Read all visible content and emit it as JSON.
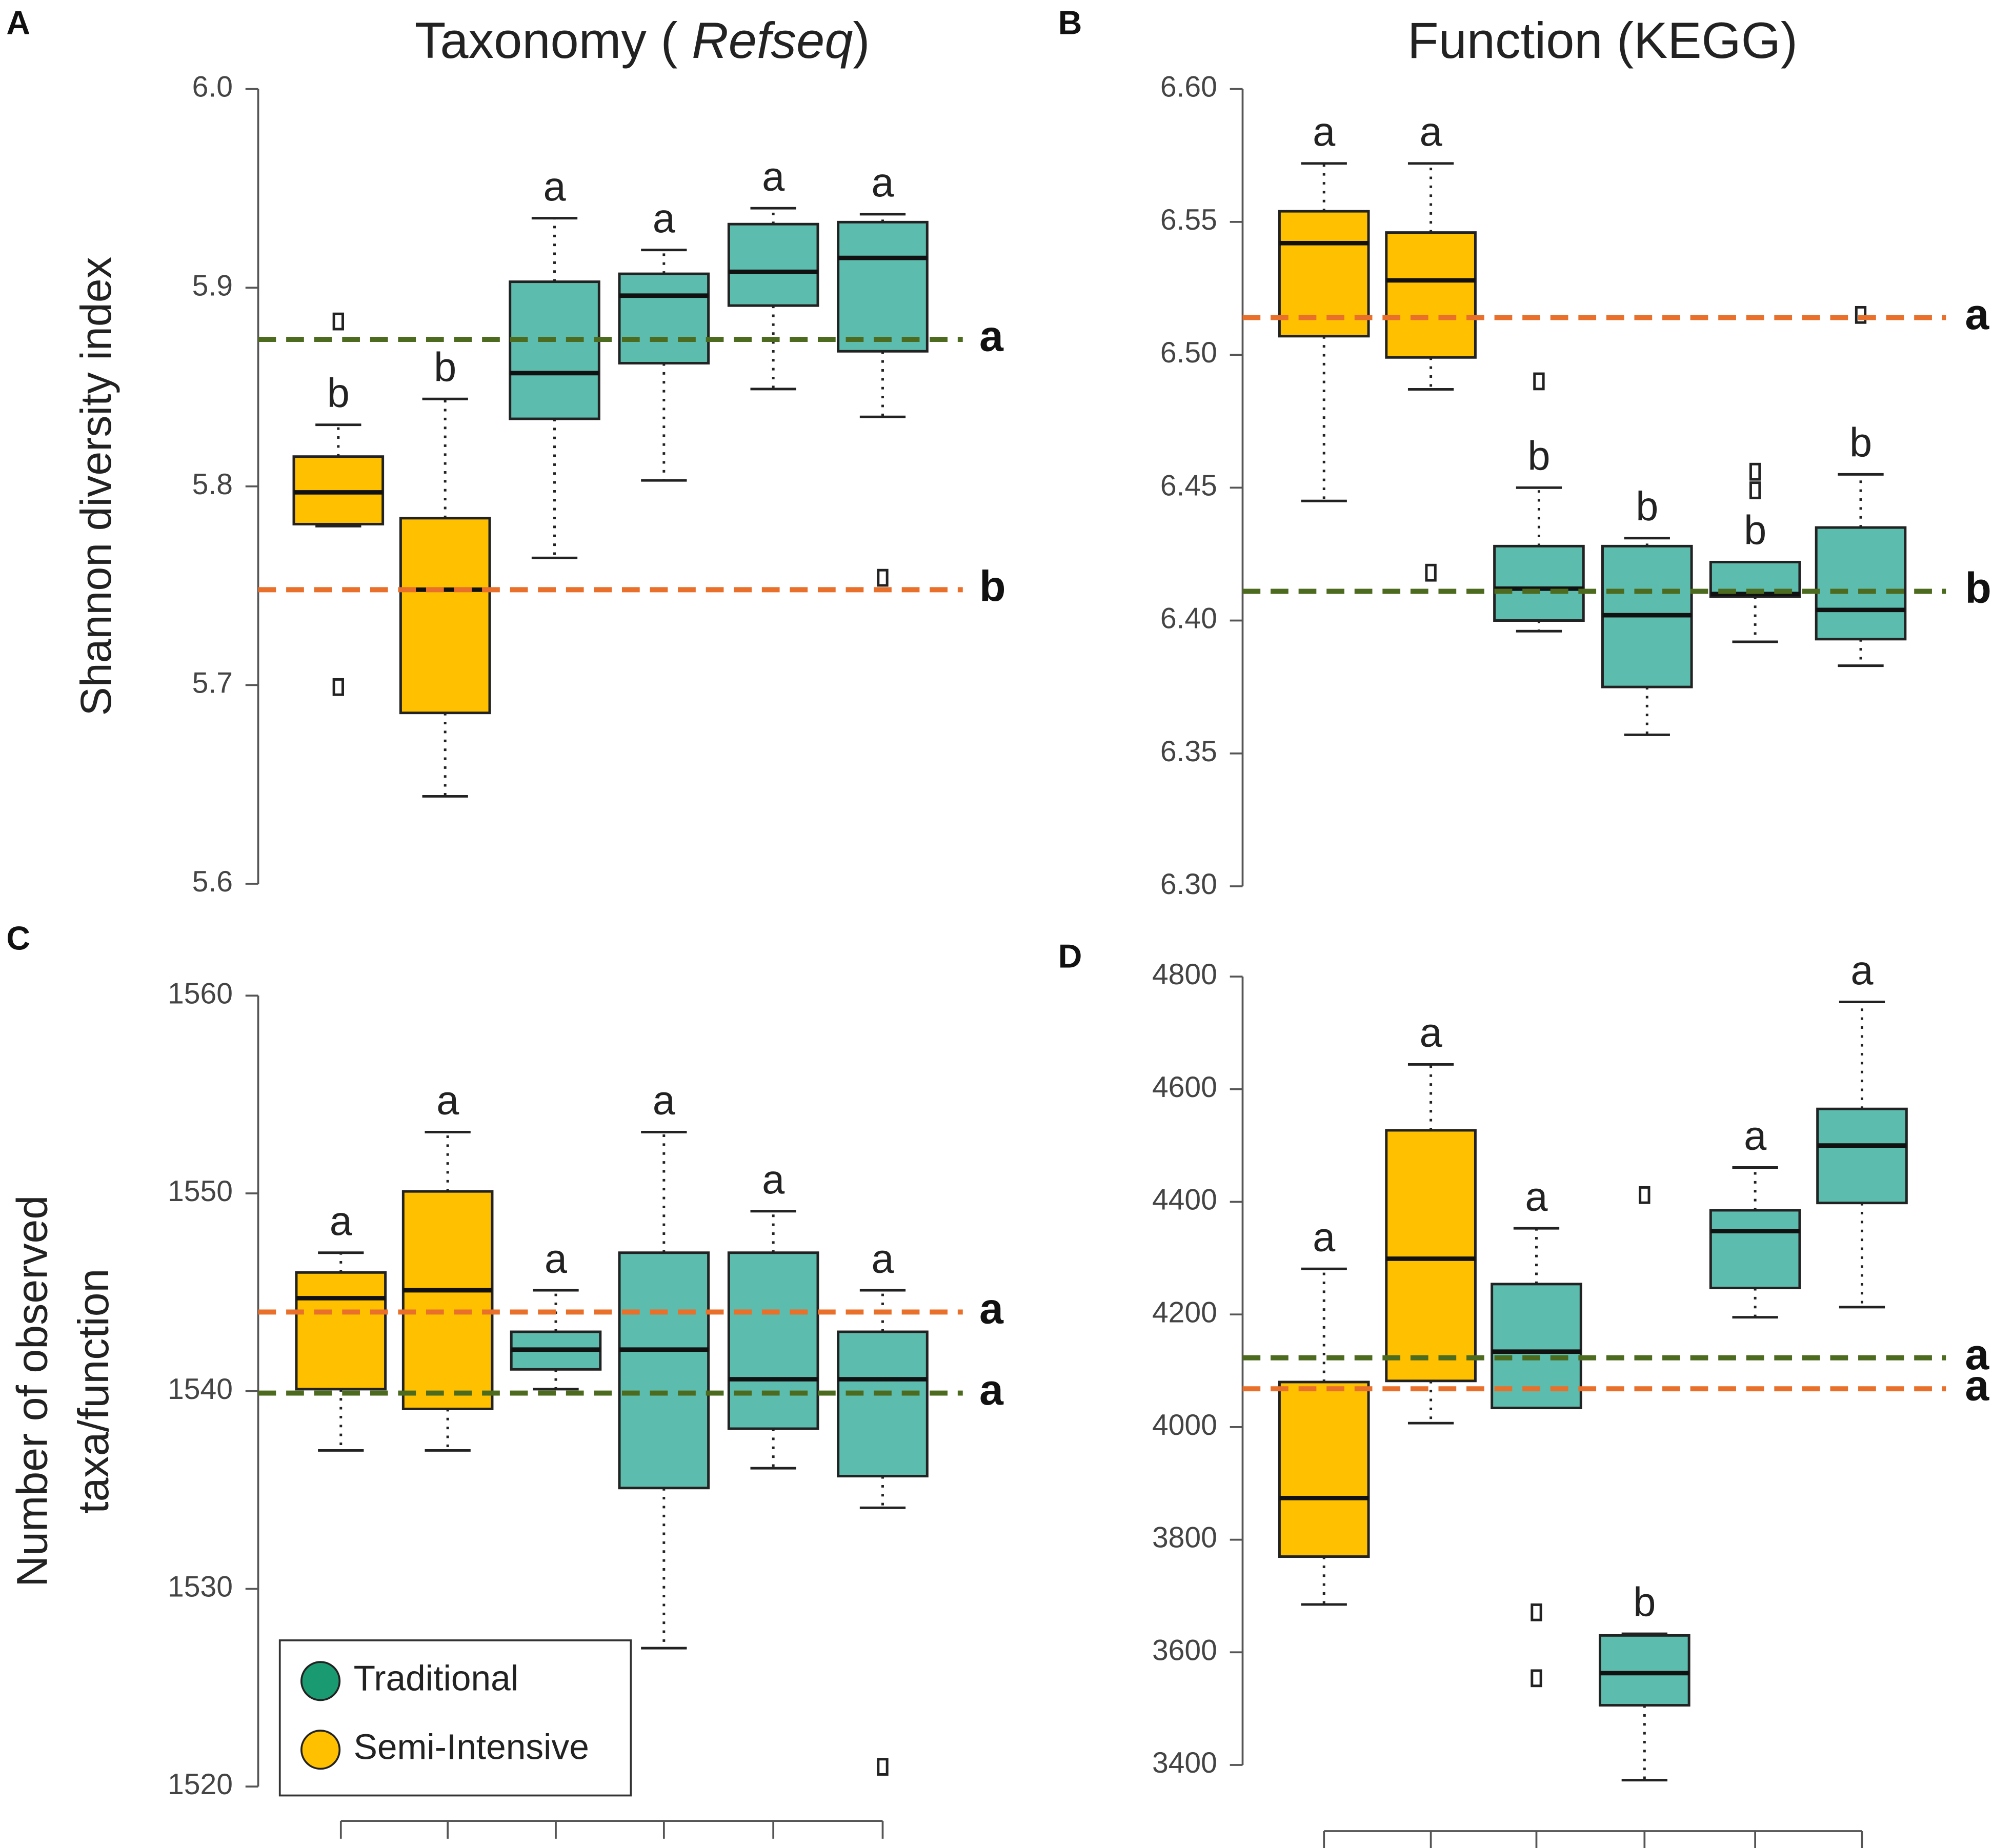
{
  "chart_data": [
    {
      "type": "box",
      "panel_label": "A",
      "title": [
        {
          "text": "Taxonomy ( "
        },
        {
          "text": "Refseq",
          "italic": true
        },
        {
          "text": ")"
        }
      ],
      "ylabel": [
        "Shannon diversity index"
      ],
      "ylim": [
        5.6,
        6.0
      ],
      "yticks": [
        5.6,
        5.7,
        5.8,
        5.9,
        {
          "value": 6.0,
          "label": "6.0"
        }
      ],
      "boxes": [
        {
          "color": "#ffc000",
          "min": 5.78,
          "q1": 5.781,
          "median": 5.797,
          "q3": 5.815,
          "max": 5.831,
          "outliers": [
            5.699,
            5.883
          ],
          "letter": "b"
        },
        {
          "color": "#ffc000",
          "min": 5.644,
          "q1": 5.686,
          "median": 5.748,
          "q3": 5.784,
          "max": 5.844,
          "outliers": [],
          "letter": "b"
        },
        {
          "color": "#5cbcad",
          "min": 5.764,
          "q1": 5.834,
          "median": 5.857,
          "q3": 5.903,
          "max": 5.935,
          "outliers": [],
          "letter": "a"
        },
        {
          "color": "#5cbcad",
          "min": 5.803,
          "q1": 5.862,
          "median": 5.896,
          "q3": 5.907,
          "max": 5.919,
          "outliers": [],
          "letter": "a"
        },
        {
          "color": "#5cbcad",
          "min": 5.849,
          "q1": 5.891,
          "median": 5.908,
          "q3": 5.932,
          "max": 5.94,
          "outliers": [],
          "letter": "a"
        },
        {
          "color": "#5cbcad",
          "min": 5.835,
          "q1": 5.868,
          "median": 5.915,
          "q3": 5.933,
          "max": 5.937,
          "outliers": [
            5.754
          ],
          "letter": "a"
        }
      ],
      "reference_lines": [
        {
          "value": 5.874,
          "label": "a",
          "color": "#4d6b1f"
        },
        {
          "value": 5.748,
          "label": "b",
          "color": "#e8702a"
        }
      ]
    },
    {
      "type": "box",
      "panel_label": "B",
      "title": [
        {
          "text": "Function (KEGG)"
        }
      ],
      "ylim": [
        6.3,
        6.6
      ],
      "yticks": [
        {
          "value": 6.3,
          "label": "6.30"
        },
        6.35,
        {
          "value": 6.4,
          "label": "6.40"
        },
        6.45,
        {
          "value": 6.5,
          "label": "6.50"
        },
        6.55,
        {
          "value": 6.6,
          "label": "6.60"
        }
      ],
      "boxes": [
        {
          "color": "#ffc000",
          "min": 6.445,
          "q1": 6.507,
          "median": 6.542,
          "q3": 6.554,
          "max": 6.572,
          "outliers": [],
          "letter": "a"
        },
        {
          "color": "#ffc000",
          "min": 6.487,
          "q1": 6.499,
          "median": 6.528,
          "q3": 6.546,
          "max": 6.572,
          "outliers": [
            6.418
          ],
          "letter": "a"
        },
        {
          "color": "#5cbcad",
          "min": 6.396,
          "q1": 6.4,
          "median": 6.412,
          "q3": 6.428,
          "max": 6.45,
          "outliers": [
            6.49
          ],
          "letter": "b"
        },
        {
          "color": "#5cbcad",
          "min": 6.357,
          "q1": 6.375,
          "median": 6.402,
          "q3": 6.428,
          "max": 6.431,
          "outliers": [],
          "letter": "b"
        },
        {
          "color": "#5cbcad",
          "min": 6.392,
          "q1": 6.409,
          "median": 6.41,
          "q3": 6.422,
          "max": 6.422,
          "outliers": [
            6.456,
            6.449
          ],
          "letter": "b"
        },
        {
          "color": "#5cbcad",
          "min": 6.383,
          "q1": 6.393,
          "median": 6.404,
          "q3": 6.435,
          "max": 6.455,
          "outliers": [
            6.515
          ],
          "letter": "b"
        }
      ],
      "reference_lines": [
        {
          "value": 6.514,
          "label": "a",
          "color": "#e8702a"
        },
        {
          "value": 6.411,
          "label": "b",
          "color": "#4d6b1f"
        }
      ]
    },
    {
      "type": "box",
      "panel_label": "C",
      "ylabel": [
        "Number of observed",
        "taxa/function"
      ],
      "categories": [
        null,
        null,
        null,
        null,
        null,
        null
      ],
      "ylim": [
        1520,
        1560
      ],
      "yticks": [
        1520,
        1530,
        1540,
        1550,
        1560
      ],
      "boxes": [
        {
          "color": "#ffc000",
          "min": 1537,
          "q1": 1540.1,
          "median": 1544.7,
          "q3": 1546,
          "max": 1547,
          "outliers": [],
          "letter": "a"
        },
        {
          "color": "#ffc000",
          "min": 1537,
          "q1": 1539.1,
          "median": 1545.1,
          "q3": 1550.1,
          "max": 1553.1,
          "outliers": [],
          "letter": "a"
        },
        {
          "color": "#5cbcad",
          "min": 1540.1,
          "q1": 1541.1,
          "median": 1542.1,
          "q3": 1543,
          "max": 1545.1,
          "outliers": [],
          "letter": "a"
        },
        {
          "color": "#5cbcad",
          "min": 1527,
          "q1": 1535.1,
          "median": 1542.1,
          "q3": 1547,
          "max": 1553.1,
          "outliers": [],
          "letter": "a"
        },
        {
          "color": "#5cbcad",
          "min": 1536.1,
          "q1": 1538.1,
          "median": 1540.6,
          "q3": 1547,
          "max": 1549.1,
          "outliers": [],
          "letter": "a"
        },
        {
          "color": "#5cbcad",
          "min": 1534.1,
          "q1": 1535.7,
          "median": 1540.6,
          "q3": 1543,
          "max": 1545.1,
          "outliers": [
            1521
          ],
          "letter": "a"
        }
      ],
      "reference_lines": [
        {
          "value": 1544,
          "label": "a",
          "color": "#e8702a"
        },
        {
          "value": 1539.9,
          "label": "a",
          "color": "#4d6b1f"
        }
      ],
      "legend": [
        {
          "name": "Traditional",
          "color": "#1a9a70"
        },
        {
          "name": "Semi-Intensive",
          "color": "#ffc000"
        }
      ]
    },
    {
      "type": "box",
      "panel_label": "D",
      "categories": [
        null,
        null,
        null,
        null,
        null,
        null
      ],
      "ylim": [
        3400,
        4800
      ],
      "yticks": [
        3400,
        3600,
        3800,
        4000,
        4200,
        4400,
        4600,
        4800
      ],
      "boxes": [
        {
          "color": "#ffc000",
          "min": 3685,
          "q1": 3770,
          "median": 3874,
          "q3": 4080,
          "max": 4281,
          "outliers": [],
          "letter": "a"
        },
        {
          "color": "#ffc000",
          "min": 4007,
          "q1": 4082,
          "median": 4299,
          "q3": 4527,
          "max": 4644,
          "outliers": [],
          "letter": "a"
        },
        {
          "color": "#5cbcad",
          "min": 4034,
          "q1": 4034,
          "median": 4134,
          "q3": 4254,
          "max": 4353,
          "outliers": [
            3671,
            3554
          ],
          "letter": "a"
        },
        {
          "color": "#5cbcad",
          "min": 3373,
          "q1": 3506,
          "median": 3563,
          "q3": 3630,
          "max": 3633,
          "outliers": [
            4412
          ],
          "letter": "b"
        },
        {
          "color": "#5cbcad",
          "min": 4195,
          "q1": 4247,
          "median": 4348,
          "q3": 4385,
          "max": 4461,
          "outliers": [],
          "letter": "a"
        },
        {
          "color": "#5cbcad",
          "min": 4213,
          "q1": 4398,
          "median": 4500,
          "q3": 4565,
          "max": 4755,
          "outliers": [],
          "letter": "a"
        }
      ],
      "reference_lines": [
        {
          "value": 4123,
          "label": "a",
          "color": "#4d6b1f"
        },
        {
          "value": 4068,
          "label": "a",
          "color": "#e8702a"
        }
      ]
    }
  ]
}
